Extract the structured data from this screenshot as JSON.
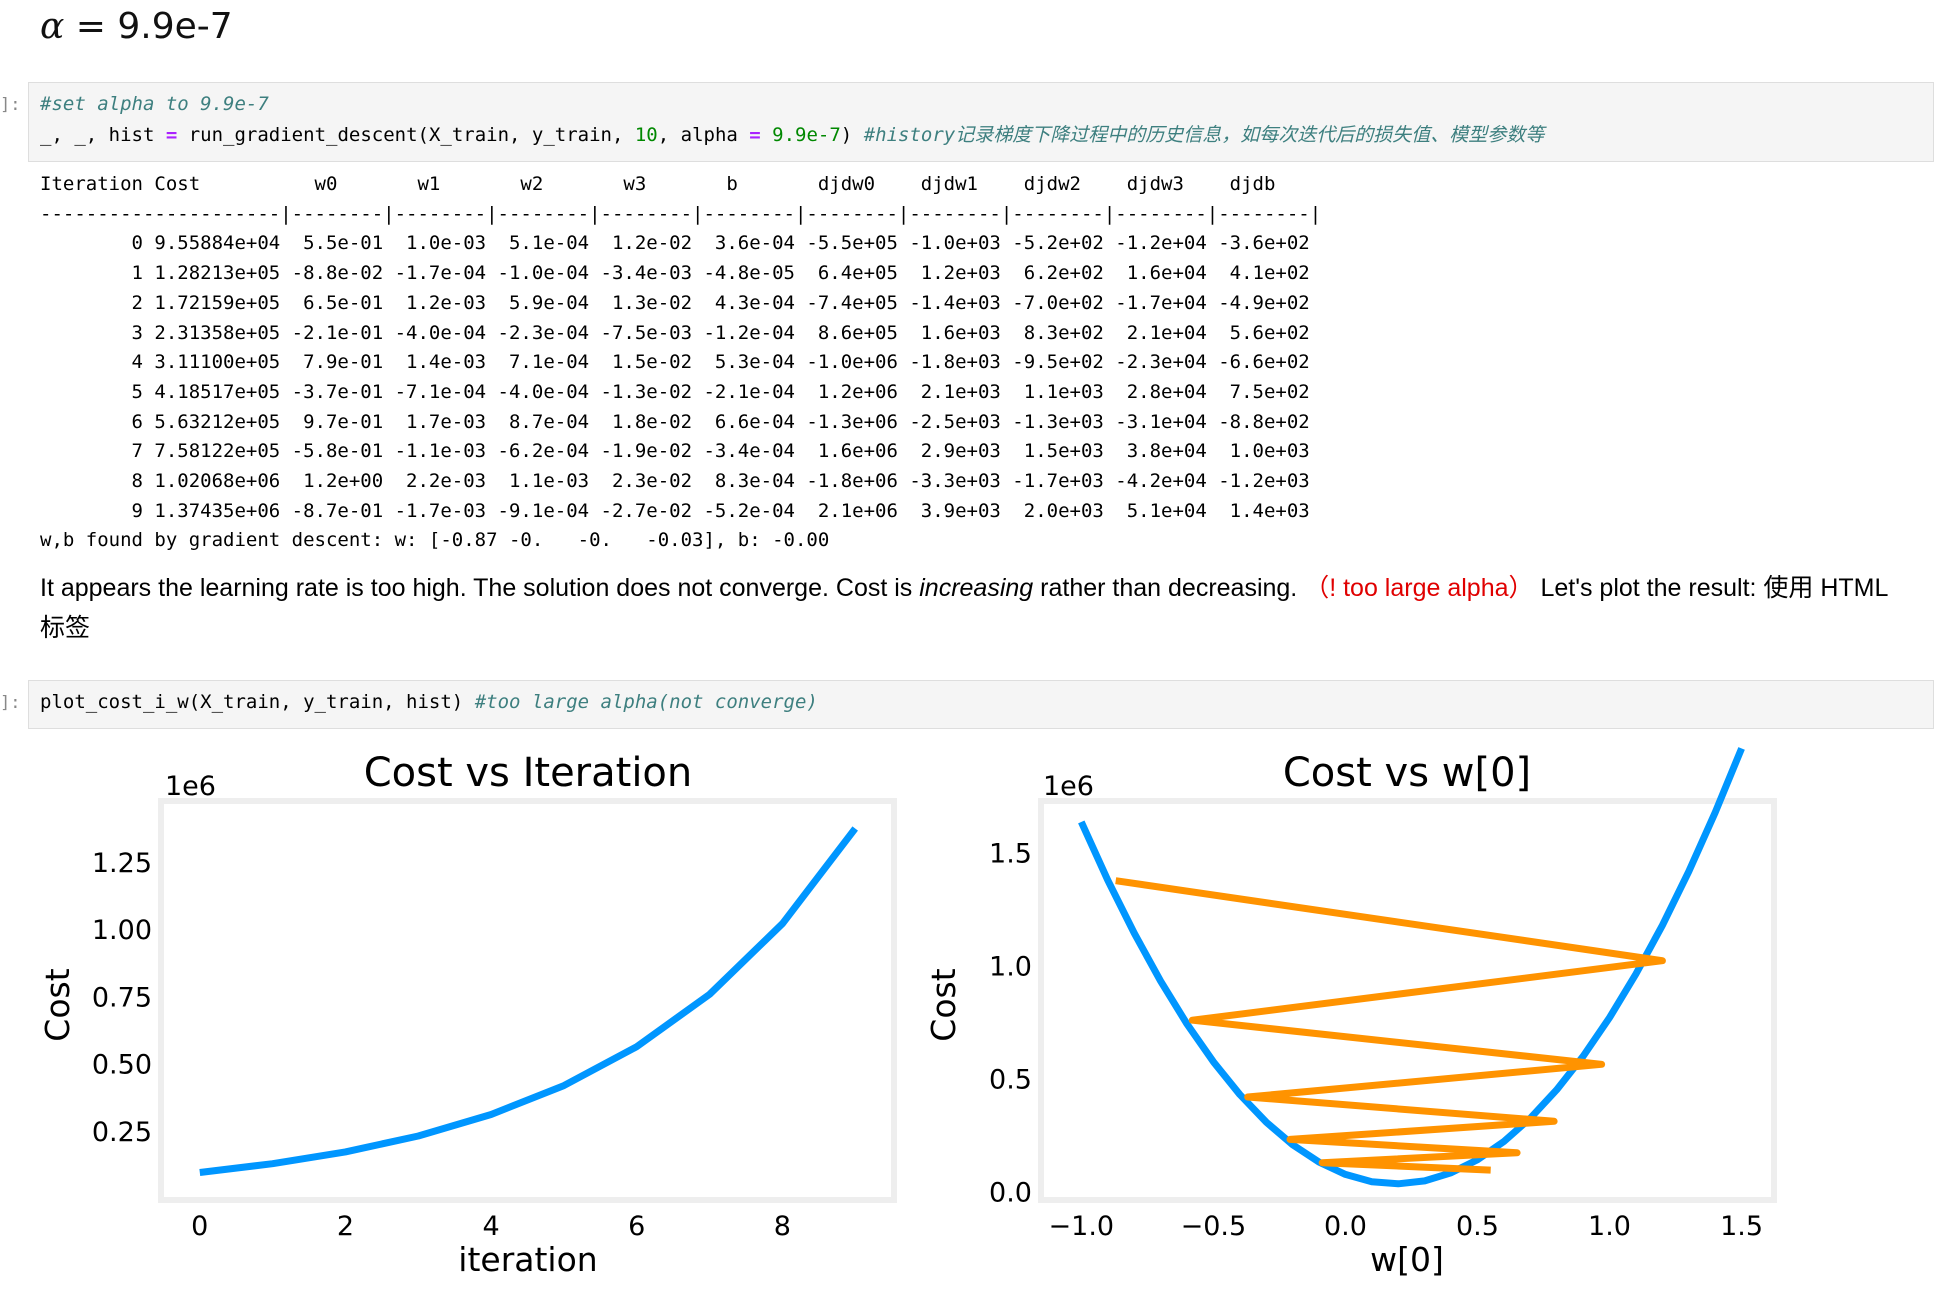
{
  "heading": {
    "alpha_symbol": "α",
    "rest": " = 9.9e-7"
  },
  "prompts": {
    "cell1": "]:",
    "cell2": "]:"
  },
  "cell1": {
    "comment": "#set alpha to 9.9e-7",
    "code_a": "_, _, hist ",
    "op_eq": "=",
    "code_b": " run_gradient_descent(X_train, y_train, ",
    "num_iters": "10",
    "code_c": ", alpha ",
    "op_eq2": "=",
    "alpha_value": " 9.9e-7",
    "code_d": ") ",
    "comment2": "#history记录梯度下降过程中的历史信息，如每次迭代后的损失值、模型参数等"
  },
  "output": {
    "header": "Iteration Cost          w0       w1       w2       w3       b       djdw0    djdw1    djdw2    djdw3    djdb  ",
    "separator": "---------------------|--------|--------|--------|--------|--------|--------|--------|--------|--------|--------|",
    "rows": [
      "        0 9.55884e+04  5.5e-01  1.0e-03  5.1e-04  1.2e-02  3.6e-04 -5.5e+05 -1.0e+03 -5.2e+02 -1.2e+04 -3.6e+02",
      "        1 1.28213e+05 -8.8e-02 -1.7e-04 -1.0e-04 -3.4e-03 -4.8e-05  6.4e+05  1.2e+03  6.2e+02  1.6e+04  4.1e+02",
      "        2 1.72159e+05  6.5e-01  1.2e-03  5.9e-04  1.3e-02  4.3e-04 -7.4e+05 -1.4e+03 -7.0e+02 -1.7e+04 -4.9e+02",
      "        3 2.31358e+05 -2.1e-01 -4.0e-04 -2.3e-04 -7.5e-03 -1.2e-04  8.6e+05  1.6e+03  8.3e+02  2.1e+04  5.6e+02",
      "        4 3.11100e+05  7.9e-01  1.4e-03  7.1e-04  1.5e-02  5.3e-04 -1.0e+06 -1.8e+03 -9.5e+02 -2.3e+04 -6.6e+02",
      "        5 4.18517e+05 -3.7e-01 -7.1e-04 -4.0e-04 -1.3e-02 -2.1e-04  1.2e+06  2.1e+03  1.1e+03  2.8e+04  7.5e+02",
      "        6 5.63212e+05  9.7e-01  1.7e-03  8.7e-04  1.8e-02  6.6e-04 -1.3e+06 -2.5e+03 -1.3e+03 -3.1e+04 -8.8e+02",
      "        7 7.58122e+05 -5.8e-01 -1.1e-03 -6.2e-04 -1.9e-02 -3.4e-04  1.6e+06  2.9e+03  1.5e+03  3.8e+04  1.0e+03",
      "        8 1.02068e+06  1.2e+00  2.2e-03  1.1e-03  2.3e-02  8.3e-04 -1.8e+06 -3.3e+03 -1.7e+03 -4.2e+04 -1.2e+03",
      "        9 1.37435e+06 -8.7e-01 -1.7e-03 -9.1e-04 -2.7e-02 -5.2e-04  2.1e+06  3.9e+03  2.0e+03  5.1e+04  1.4e+03"
    ],
    "result": "w,b found by gradient descent: w: [-0.87 -0.   -0.   -0.03], b: -0.00"
  },
  "markdown": {
    "part1": "It appears the learning rate is too high.  The solution does not converge. Cost is ",
    "em": "increasing",
    "part2": " rather than decreasing.  ",
    "red": "（! too large alpha）",
    "part3": "  Let's plot the result: 使用 HTML 标签"
  },
  "cell2": {
    "code": "plot_cost_i_w(X_train, y_train, hist) ",
    "comment": "#too large alpha(not converge)"
  },
  "colors": {
    "line_blue": "#0096ff",
    "line_orange": "#ff9300",
    "plot_border": "#eeeeee"
  },
  "chart_data": [
    {
      "type": "line",
      "title": "Cost vs Iteration",
      "xlabel": "iteration",
      "ylabel": "Cost",
      "y_scale_label": "1e6",
      "x": [
        0,
        1,
        2,
        3,
        4,
        5,
        6,
        7,
        8,
        9
      ],
      "y": [
        95588.4,
        128213,
        172159,
        231358,
        311100,
        418517,
        563212,
        758122,
        1020680,
        1374350
      ],
      "xlim": [
        -0.45,
        9.45
      ],
      "ylim": [
        0.0156,
        1.4544
      ],
      "xticks": [
        0,
        2,
        4,
        6,
        8
      ],
      "xtick_labels": [
        "0",
        "2",
        "4",
        "6",
        "8"
      ],
      "yticks": [
        0.25,
        0.5,
        0.75,
        1.0,
        1.25
      ],
      "ytick_labels": [
        "0.25",
        "0.50",
        "0.75",
        "1.00",
        "1.25"
      ],
      "grid": false
    },
    {
      "type": "line",
      "title": "Cost vs w[0]",
      "xlabel": "w[0]",
      "ylabel": "Cost",
      "y_scale_label": "1e6",
      "series": [
        {
          "color": "#0096ff",
          "x": [
            -1.0,
            -0.9,
            -0.8,
            -0.7,
            -0.6,
            -0.5,
            -0.4,
            -0.3,
            -0.2,
            -0.1,
            0.0,
            0.1,
            0.2,
            0.3,
            0.4,
            0.5,
            0.6,
            0.7,
            0.8,
            0.9,
            1.0,
            1.1,
            1.2,
            1.3,
            1.4,
            1.5
          ],
          "y": [
            1.6342,
            1.3771,
            1.1426,
            0.9305,
            0.741,
            0.574,
            0.4295,
            0.3075,
            0.208,
            0.131,
            0.0765,
            0.0445,
            0.035,
            0.048,
            0.0835,
            0.1415,
            0.222,
            0.325,
            0.4505,
            0.5985,
            0.769,
            0.962,
            1.1775,
            1.4155,
            1.676,
            1.959
          ]
        },
        {
          "color": "#ff9300",
          "x": [
            -0.87,
            1.2,
            -0.58,
            0.97,
            -0.37,
            0.79,
            -0.21,
            0.65,
            -0.088,
            0.55
          ],
          "y": [
            1.37435,
            1.02068,
            0.758122,
            0.563212,
            0.418517,
            0.3111,
            0.231358,
            0.172159,
            0.128213,
            0.0955884
          ]
        }
      ],
      "xlim": [
        -1.13,
        1.6
      ],
      "ylim": [
        -0.01,
        1.7
      ],
      "xticks": [
        -1.0,
        -0.5,
        0.0,
        0.5,
        1.0,
        1.5
      ],
      "xtick_labels": [
        "−1.0",
        "−0.5",
        "0.0",
        "0.5",
        "1.0",
        "1.5"
      ],
      "yticks": [
        0.0,
        0.5,
        1.0,
        1.5
      ],
      "ytick_labels": [
        "0.0",
        "0.5",
        "1.0",
        "1.5"
      ],
      "grid": false
    }
  ]
}
